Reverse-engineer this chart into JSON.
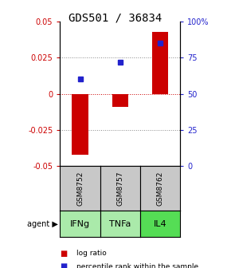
{
  "title": "GDS501 / 36834",
  "samples": [
    "GSM8752",
    "GSM8757",
    "GSM8762"
  ],
  "agents": [
    "IFNg",
    "TNFa",
    "IL4"
  ],
  "log_ratios": [
    -0.042,
    -0.009,
    0.043
  ],
  "percentile_ranks": [
    0.6,
    0.72,
    0.85
  ],
  "bar_color": "#cc0000",
  "square_color": "#2222cc",
  "ylim_left": [
    -0.05,
    0.05
  ],
  "ylim_right": [
    0.0,
    1.0
  ],
  "yticks_left": [
    -0.05,
    -0.025,
    0.0,
    0.025,
    0.05
  ],
  "ytick_labels_left": [
    "-0.05",
    "-0.025",
    "0",
    "0.025",
    "0.05"
  ],
  "yticks_right": [
    0.0,
    0.25,
    0.5,
    0.75,
    1.0
  ],
  "ytick_labels_right": [
    "0",
    "25",
    "50",
    "75",
    "100%"
  ],
  "gray_box_color": "#c8c8c8",
  "green_box_colors": [
    "#aaeaaa",
    "#aaeaaa",
    "#55dd55"
  ],
  "bar_width": 0.4,
  "title_fontsize": 10,
  "tick_fontsize": 7,
  "legend_fontsize": 6.5,
  "sample_fontsize": 6.5,
  "agent_fontsize": 8
}
